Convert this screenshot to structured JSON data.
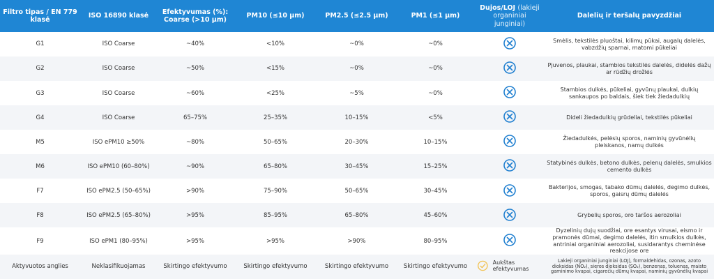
{
  "table": {
    "header": {
      "filter": "Filtro tipas / EN 779 klasė",
      "iso": "ISO 16890 klasė",
      "efficiency": "Efektyvumas (%): Coarse (>10 µm)",
      "pm10": "PM10 (≤10 µm)",
      "pm25": "PM2.5 (≤2.5 µm)",
      "pm1": "PM1 (≤1 µm)",
      "gas": "Dujos/LOJ",
      "gas_note": "(lakieji organiniai junginiai)",
      "examples": "Dalelių ir teršalų pavyzdžiai"
    },
    "rows": [
      {
        "filter": "G1",
        "iso": "ISO Coarse",
        "efficiency": "~40%",
        "pm10": "<10%",
        "pm25": "~0%",
        "pm1": "~0%",
        "examples": "Smėlis, tekstilės pluoštai, kilimų pūkai, augalų dalelės,  vabzdžių sparnai, matomi pūkeliai"
      },
      {
        "filter": "G2",
        "iso": "ISO Coarse",
        "efficiency": "~50%",
        "pm10": "<15%",
        "pm25": "~0%",
        "pm1": "~0%",
        "examples": "Pjuvenos, plaukai, stambios tekstilės dalelės, didelės dažų ar rūdžių drožlės"
      },
      {
        "filter": "G3",
        "iso": "ISO Coarse",
        "efficiency": "~60%",
        "pm10": "<25%",
        "pm25": "~5%",
        "pm1": "~0%",
        "examples": "Stambios dulkės, pūkeliai, gyvūnų plaukai, dulkių sankaupos po baldais, šiek tiek žiedadulkių"
      },
      {
        "filter": "G4",
        "iso": "ISO Coarse",
        "efficiency": "65–75%",
        "pm10": "25–35%",
        "pm25": "10–15%",
        "pm1": "<5%",
        "examples": "Dideli žiedadulkių grūdeliai, tekstilės pūkeliai"
      },
      {
        "filter": "M5",
        "iso": "ISO ePM10 ≥50%",
        "efficiency": "~80%",
        "pm10": "50–65%",
        "pm25": "20–30%",
        "pm1": "10–15%",
        "examples": "Žiedadulkės, pelėsių sporos, naminių gyvūnėlių pleiskanos, namų dulkės"
      },
      {
        "filter": "M6",
        "iso": "ISO ePM10 (60–80%)",
        "efficiency": "~90%",
        "pm10": "65–80%",
        "pm25": "30–45%",
        "pm1": "15–25%",
        "examples": "Statybinės dulkės, betono dulkės, pelenų dalelės, smulkios cemento dulkės"
      },
      {
        "filter": "F7",
        "iso": "ISO ePM2.5 (50–65%)",
        "efficiency": ">90%",
        "pm10": "75–90%",
        "pm25": "50–65%",
        "pm1": "30–45%",
        "examples": "Bakterijos, smogas, tabako dūmų dalelės, degimo dulkės, sporos, gaisrų dūmų dalelės"
      },
      {
        "filter": "F8",
        "iso": "ISO ePM2.5 (65–80%)",
        "efficiency": ">95%",
        "pm10": "85–95%",
        "pm25": "65–80%",
        "pm1": "45–60%",
        "examples": "Grybelių sporos, oro taršos aerozoliai"
      },
      {
        "filter": "F9",
        "iso": "ISO ePM1 (80–95%)",
        "efficiency": ">95%",
        "pm10": ">95%",
        "pm25": ">90%",
        "pm1": "80–95%",
        "examples": "Dyzelinių dujų suodžiai, ore esantys virusai, eismo ir pramonės dūmai, degimo dalelės, itin smulkios dulkės, antriniai organiniai aerozoliai, susidarantys cheminėse reakcijose ore"
      },
      {
        "filter": "Aktyvuotos anglies",
        "iso": "Neklasifikuojamas",
        "efficiency": "Skirtingo efektyvumo",
        "pm10": "Skirtingo efektyvumo",
        "pm25": "Skirtingo efektyvumo",
        "pm1": "Skirtingo efektyvumo",
        "gas_label": "Aukštas efektyvumas",
        "examples": "Lakieji organiniai junginiai (LOJ), formaldehidas, ozonas, azoto dioksidas (NO₂), sieros dioksidas (SO₂), benzenas, toluenas, maisto gaminimo kvapai, cigarečių dūmų kvapai, naminių gyvūnėlių kvapai"
      }
    ]
  }
}
